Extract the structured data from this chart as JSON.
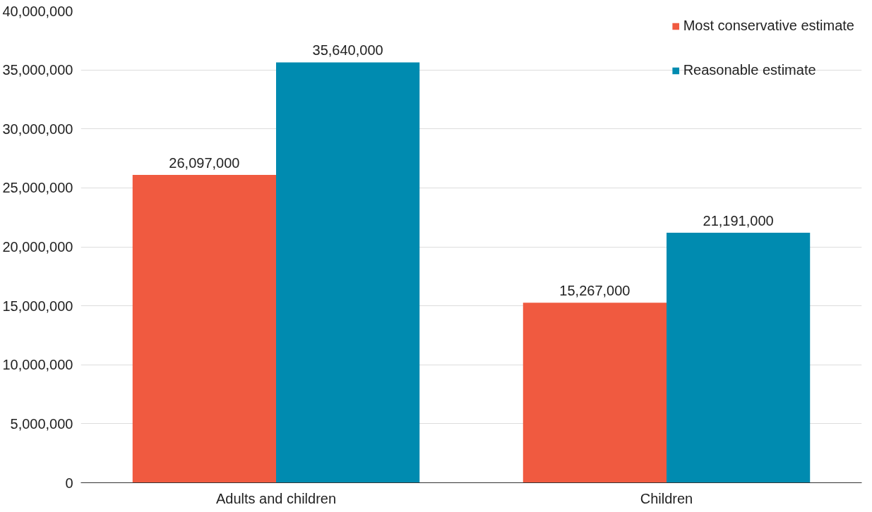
{
  "chart_data": {
    "type": "bar",
    "categories": [
      "Adults and children",
      "Children"
    ],
    "series": [
      {
        "name": "Most conservative estimate",
        "color": "#f05a40",
        "values": [
          26097000,
          15267000
        ],
        "value_labels": [
          "26,097,000",
          "15,267,000"
        ]
      },
      {
        "name": "Reasonable estimate",
        "color": "#008bb0",
        "values": [
          35640000,
          21191000
        ],
        "value_labels": [
          "35,640,000",
          "21,191,000"
        ]
      }
    ],
    "ylim": [
      0,
      40000000
    ],
    "yticks": [
      {
        "value": 0,
        "label": "0"
      },
      {
        "value": 5000000,
        "label": "5,000,000"
      },
      {
        "value": 10000000,
        "label": "10,000,000"
      },
      {
        "value": 15000000,
        "label": "15,000,000"
      },
      {
        "value": 20000000,
        "label": "20,000,000"
      },
      {
        "value": 25000000,
        "label": "25,000,000"
      },
      {
        "value": 30000000,
        "label": "30,000,000"
      },
      {
        "value": 35000000,
        "label": "35,000,000"
      },
      {
        "value": 40000000,
        "label": "40,000,000"
      }
    ],
    "grid": "y",
    "legend": "top right"
  }
}
